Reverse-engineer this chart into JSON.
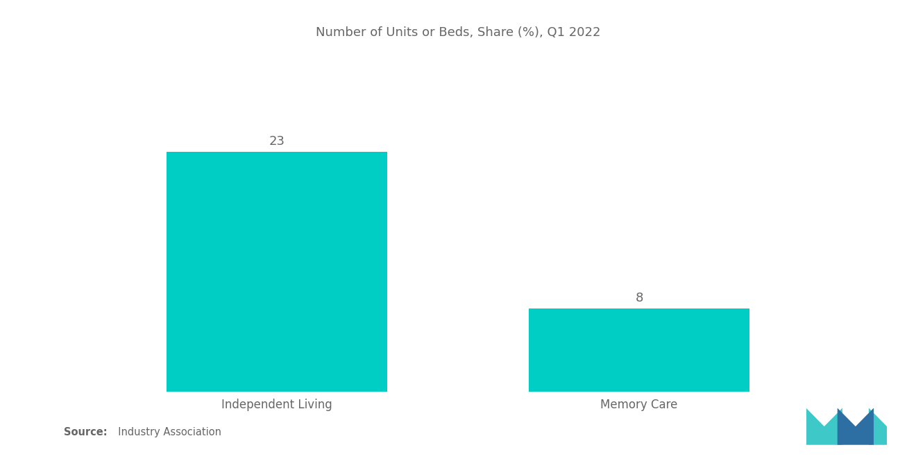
{
  "title": "Number of Units or Beds, Share (%), Q1 2022",
  "categories": [
    "Independent Living",
    "Memory Care"
  ],
  "values": [
    23,
    8
  ],
  "bar_color": "#00CEC4",
  "bar_width": 0.28,
  "bar_positions": [
    0.27,
    0.73
  ],
  "value_labels": [
    "23",
    "8"
  ],
  "background_color": "#ffffff",
  "title_color": "#666666",
  "label_color": "#666666",
  "title_fontsize": 13,
  "label_fontsize": 12,
  "value_fontsize": 13,
  "source_bold": "Source:",
  "source_normal": "  Industry Association",
  "source_fontsize": 10.5,
  "ylim": [
    0,
    30
  ],
  "logo_teal": "#3EC8C8",
  "logo_blue": "#2E6FA3"
}
